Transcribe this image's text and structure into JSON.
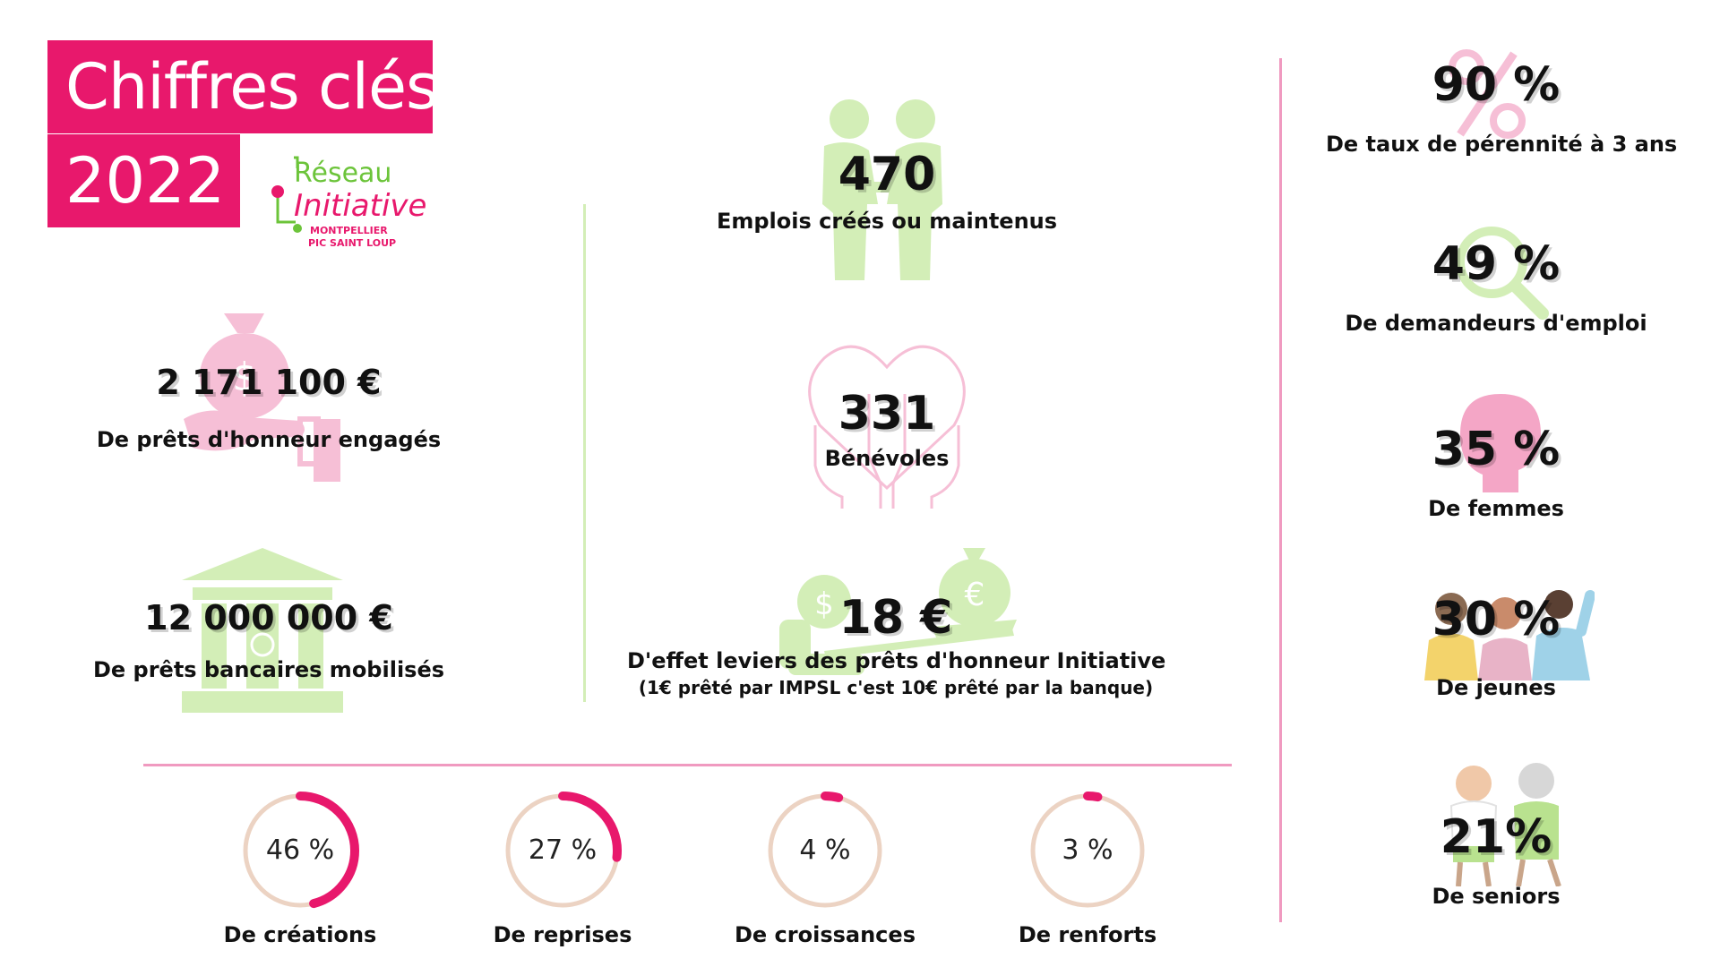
{
  "header": {
    "title": "Chiffres clés",
    "year": "2022",
    "logo": {
      "line1": "Réseau",
      "line2": "Initiative",
      "line3": "MONTPELLIER",
      "line4": "PIC SAINT LOUP"
    }
  },
  "left": {
    "honor_loans": {
      "value": "2 171 100 €",
      "label": "De prêts d'honneur engagés",
      "icon": "money-bag-hand-icon"
    },
    "bank_loans": {
      "value": "12 000 000 €",
      "label": "De prêts bancaires mobilisés",
      "icon": "bank-icon"
    }
  },
  "middle": {
    "jobs": {
      "value": "470",
      "label": "Emplois créés ou maintenus",
      "icon": "people-handshake-icon"
    },
    "volunteers": {
      "value": "331",
      "label": "Bénévoles",
      "icon": "hands-heart-icon"
    },
    "leverage": {
      "value": "18 €",
      "label": "D'effet leviers des prêts d'honneur Initiative",
      "note": "(1€ prêté par IMPSL c'est 10€ prêté par la banque)",
      "icon": "money-scale-icon"
    }
  },
  "rings": [
    {
      "value": "46 %",
      "label": "De créations",
      "fraction": 0.46
    },
    {
      "value": "27 %",
      "label": "De reprises",
      "fraction": 0.27
    },
    {
      "value": "4 %",
      "label": "De croissances",
      "fraction": 0.04
    },
    {
      "value": "3 %",
      "label": "De renforts",
      "fraction": 0.03
    }
  ],
  "right": {
    "sustainability": {
      "value": "90 %",
      "label": "De taux de pérennité à 3 ans",
      "icon": "percent-icon"
    },
    "job_seekers": {
      "value": "49 %",
      "label": "De demandeurs d'emploi",
      "icon": "magnifier-icon"
    },
    "women": {
      "value": "35 %",
      "label": "De femmes",
      "icon": "woman-profile-icon"
    },
    "youth": {
      "value": "30 %",
      "label": "De jeunes",
      "icon": "young-people-icon"
    },
    "seniors": {
      "value": "21%",
      "label": "De seniors",
      "icon": "seniors-icon"
    }
  },
  "colors": {
    "brand_pink": "#e8186c",
    "brand_green": "#6cc43a",
    "light_pink": "#f6bfd6",
    "light_green": "#d3eeb7",
    "ring_track": "#ecd3c3"
  }
}
